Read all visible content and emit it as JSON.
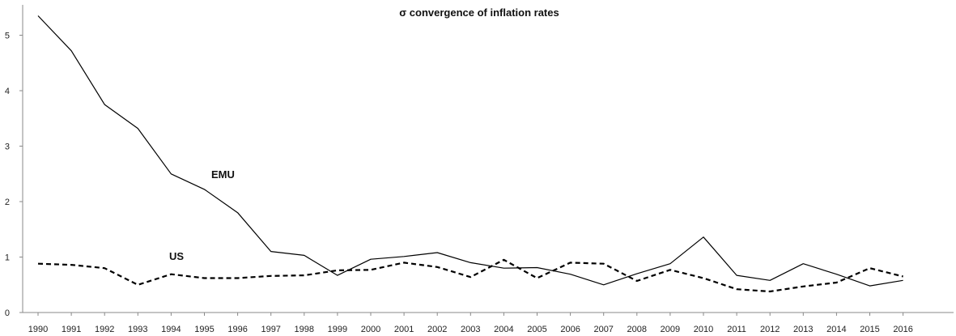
{
  "chart_data": {
    "type": "line",
    "title": "σ convergence of inflation rates",
    "xlabel": "",
    "ylabel": "",
    "ylim": [
      0,
      5.4
    ],
    "yticks": [
      0,
      1,
      2,
      3,
      4,
      5
    ],
    "grid": false,
    "legend": "none",
    "categories": [
      "1990",
      "1991",
      "1992",
      "1993",
      "1994",
      "1995",
      "1996",
      "1997",
      "1998",
      "1999",
      "2000",
      "2001",
      "2002",
      "2003",
      "2004",
      "2005",
      "2006",
      "2007",
      "2008",
      "2009",
      "2010",
      "2011",
      "2012",
      "2013",
      "2014",
      "2015",
      "2016"
    ],
    "series": [
      {
        "name": "EMU",
        "line_style": "solid",
        "color": "#000000",
        "values": [
          5.35,
          4.72,
          3.75,
          3.32,
          2.5,
          2.22,
          1.8,
          1.1,
          1.03,
          0.67,
          0.96,
          1.01,
          1.08,
          0.9,
          0.8,
          0.81,
          0.69,
          0.5,
          0.7,
          0.88,
          1.36,
          0.67,
          0.58,
          0.88,
          0.69,
          0.48,
          0.58
        ]
      },
      {
        "name": "US",
        "line_style": "dashed",
        "color": "#000000",
        "values": [
          0.88,
          0.86,
          0.8,
          0.5,
          0.69,
          0.62,
          0.62,
          0.66,
          0.67,
          0.76,
          0.77,
          0.9,
          0.82,
          0.64,
          0.95,
          0.62,
          0.9,
          0.88,
          0.57,
          0.77,
          0.62,
          0.42,
          0.38,
          0.47,
          0.54,
          0.8,
          0.65
        ]
      }
    ]
  }
}
